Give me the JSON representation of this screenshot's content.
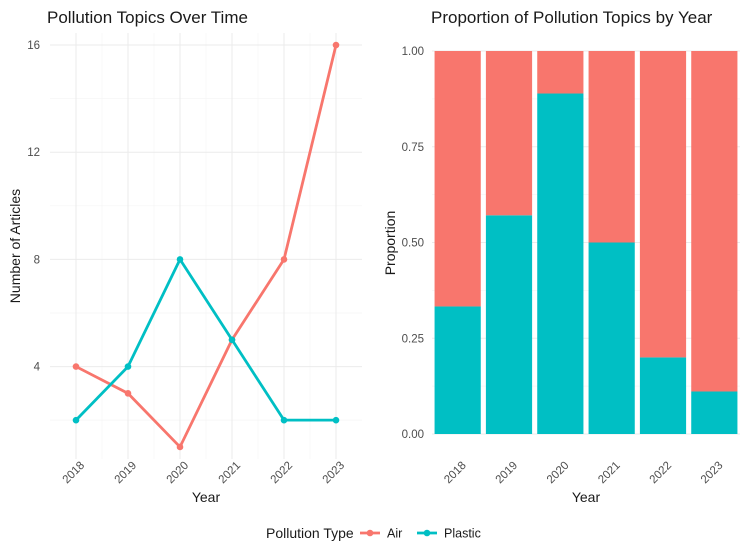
{
  "chart_data": [
    {
      "type": "line",
      "title": "Pollution Topics Over Time",
      "xlabel": "Year",
      "ylabel": "Number of Articles",
      "categories": [
        "2018",
        "2019",
        "2020",
        "2021",
        "2022",
        "2023"
      ],
      "yticks": [
        4,
        8,
        12,
        16
      ],
      "ylim": [
        0.55,
        16.45
      ],
      "grid": true,
      "series": [
        {
          "name": "Air",
          "values": [
            4,
            3,
            1,
            5,
            8,
            16
          ],
          "color": "#F8766D"
        },
        {
          "name": "Plastic",
          "values": [
            2,
            4,
            8,
            5,
            2,
            2
          ],
          "color": "#00BFC4"
        }
      ]
    },
    {
      "type": "bar",
      "stacked": true,
      "title": "Proportion of Pollution Topics by Year",
      "xlabel": "Year",
      "ylabel": "Proportion",
      "categories": [
        "2018",
        "2019",
        "2020",
        "2021",
        "2022",
        "2023"
      ],
      "ytick_labels": [
        "0.00",
        "0.25",
        "0.50",
        "0.75",
        "1.00"
      ],
      "yticks": [
        0,
        0.25,
        0.5,
        0.75,
        1.0
      ],
      "ylim": [
        0,
        1
      ],
      "grid": true,
      "series": [
        {
          "name": "Plastic",
          "values": [
            0.333,
            0.571,
            0.889,
            0.5,
            0.2,
            0.111
          ],
          "color": "#00BFC4"
        },
        {
          "name": "Air",
          "values": [
            0.667,
            0.429,
            0.111,
            0.5,
            0.8,
            0.889
          ],
          "color": "#F8766D"
        }
      ]
    }
  ],
  "legend": {
    "title": "Pollution Type",
    "position": "bottom",
    "items": [
      {
        "label": "Air",
        "color": "#F8766D"
      },
      {
        "label": "Plastic",
        "color": "#00BFC4"
      }
    ]
  }
}
